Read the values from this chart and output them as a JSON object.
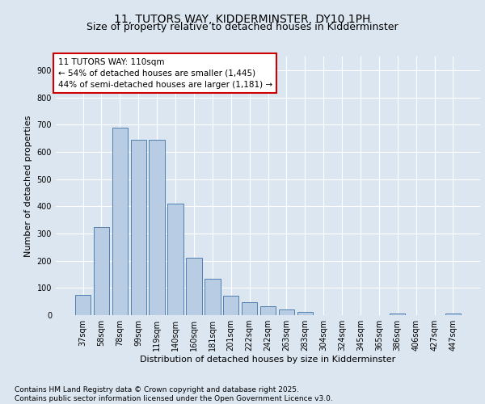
{
  "title": "11, TUTORS WAY, KIDDERMINSTER, DY10 1PH",
  "subtitle": "Size of property relative to detached houses in Kidderminster",
  "xlabel": "Distribution of detached houses by size in Kidderminster",
  "ylabel": "Number of detached properties",
  "categories": [
    "37sqm",
    "58sqm",
    "78sqm",
    "99sqm",
    "119sqm",
    "140sqm",
    "160sqm",
    "181sqm",
    "201sqm",
    "222sqm",
    "242sqm",
    "263sqm",
    "283sqm",
    "304sqm",
    "324sqm",
    "345sqm",
    "365sqm",
    "386sqm",
    "406sqm",
    "427sqm",
    "447sqm"
  ],
  "values": [
    75,
    323,
    690,
    645,
    645,
    410,
    210,
    135,
    72,
    48,
    33,
    22,
    11,
    0,
    0,
    0,
    0,
    5,
    0,
    0,
    6
  ],
  "bar_color": "#b8cce4",
  "bar_edge_color": "#5080b0",
  "background_color": "#dce6f1",
  "annotation_text": "11 TUTORS WAY: 110sqm\n← 54% of detached houses are smaller (1,445)\n44% of semi-detached houses are larger (1,181) →",
  "annotation_box_color": "#ffffff",
  "annotation_box_edge_color": "#cc0000",
  "footer_line1": "Contains HM Land Registry data © Crown copyright and database right 2025.",
  "footer_line2": "Contains public sector information licensed under the Open Government Licence v3.0.",
  "ylim": [
    0,
    950
  ],
  "yticks": [
    0,
    100,
    200,
    300,
    400,
    500,
    600,
    700,
    800,
    900
  ],
  "grid_color": "#ffffff",
  "title_fontsize": 10,
  "axis_label_fontsize": 8,
  "tick_fontsize": 7,
  "annotation_fontsize": 7.5,
  "footer_fontsize": 6.5
}
